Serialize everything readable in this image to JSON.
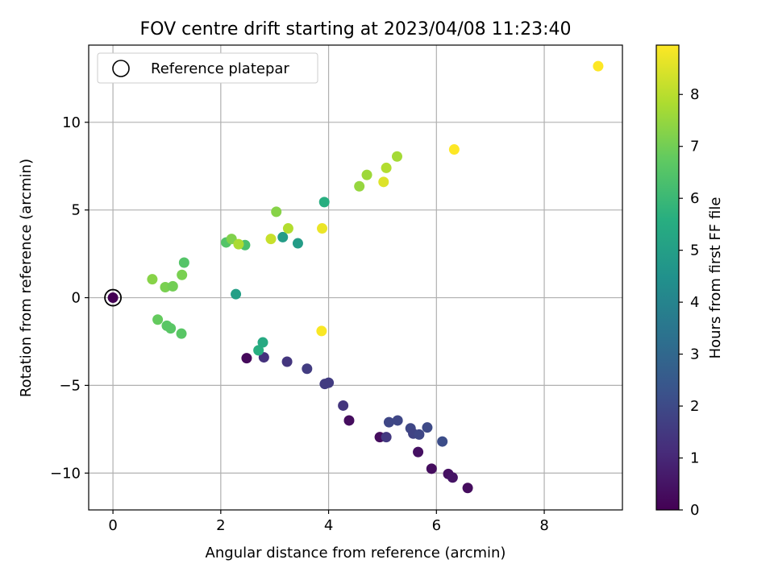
{
  "chart_data": {
    "type": "scatter",
    "title": "FOV centre drift starting at 2023/04/08 11:23:40",
    "xlabel": "Angular distance from reference (arcmin)",
    "ylabel": "Rotation from reference (arcmin)",
    "xlim": [
      -0.45,
      9.45
    ],
    "ylim": [
      -12.1,
      14.4
    ],
    "xticks": [
      0,
      2,
      4,
      6,
      8
    ],
    "xtick_labels": [
      "0",
      "2",
      "4",
      "6",
      "8"
    ],
    "yticks": [
      -10,
      -5,
      0,
      5,
      10
    ],
    "ytick_labels": [
      "−10",
      "−5",
      "0",
      "5",
      "10"
    ],
    "grid": true,
    "legend": {
      "placement": "top-left",
      "entries": [
        "Reference platepar"
      ]
    },
    "reference_point": {
      "x": 0,
      "y": 0
    },
    "colorbar": {
      "label": "Hours from first FF file",
      "colormap": "viridis",
      "range": [
        0,
        8.95
      ],
      "ticks": [
        0,
        1,
        2,
        3,
        4,
        5,
        6,
        7,
        8
      ],
      "tick_labels": [
        "0",
        "1",
        "2",
        "3",
        "4",
        "5",
        "6",
        "7",
        "8"
      ]
    },
    "series": [
      {
        "points": [
          {
            "x": 0.0,
            "y": 0.0,
            "t": 0.0
          },
          {
            "x": 2.48,
            "y": -3.45,
            "t": 0.2
          },
          {
            "x": 2.8,
            "y": -3.4,
            "t": 1.3
          },
          {
            "x": 3.23,
            "y": -3.65,
            "t": 1.4
          },
          {
            "x": 3.6,
            "y": -4.05,
            "t": 1.6
          },
          {
            "x": 3.93,
            "y": -4.92,
            "t": 1.6
          },
          {
            "x": 4.0,
            "y": -4.85,
            "t": 1.6
          },
          {
            "x": 4.27,
            "y": -6.15,
            "t": 1.4
          },
          {
            "x": 4.38,
            "y": -7.0,
            "t": 0.3
          },
          {
            "x": 4.95,
            "y": -7.95,
            "t": 0.3
          },
          {
            "x": 5.07,
            "y": -7.95,
            "t": 1.5
          },
          {
            "x": 5.12,
            "y": -7.1,
            "t": 1.9
          },
          {
            "x": 5.28,
            "y": -7.0,
            "t": 1.9
          },
          {
            "x": 5.52,
            "y": -7.45,
            "t": 1.9
          },
          {
            "x": 5.57,
            "y": -7.75,
            "t": 1.8
          },
          {
            "x": 5.68,
            "y": -7.8,
            "t": 1.9
          },
          {
            "x": 5.66,
            "y": -8.8,
            "t": 0.4
          },
          {
            "x": 5.83,
            "y": -7.4,
            "t": 2.0
          },
          {
            "x": 5.91,
            "y": -9.75,
            "t": 0.3
          },
          {
            "x": 6.11,
            "y": -8.2,
            "t": 2.1
          },
          {
            "x": 6.22,
            "y": -10.05,
            "t": 0.4
          },
          {
            "x": 6.3,
            "y": -10.25,
            "t": 0.5
          },
          {
            "x": 6.58,
            "y": -10.85,
            "t": 0.3
          },
          {
            "x": 2.28,
            "y": 0.2,
            "t": 5.0
          },
          {
            "x": 2.7,
            "y": -3.0,
            "t": 5.6
          },
          {
            "x": 2.78,
            "y": -2.55,
            "t": 5.4
          },
          {
            "x": 3.15,
            "y": 3.45,
            "t": 4.9
          },
          {
            "x": 3.43,
            "y": 3.1,
            "t": 4.9
          },
          {
            "x": 3.92,
            "y": 5.45,
            "t": 5.6
          },
          {
            "x": 2.1,
            "y": 3.15,
            "t": 6.5
          },
          {
            "x": 2.45,
            "y": 3.0,
            "t": 6.3
          },
          {
            "x": 1.32,
            "y": 2.0,
            "t": 6.5
          },
          {
            "x": 0.83,
            "y": -1.25,
            "t": 6.8
          },
          {
            "x": 1.0,
            "y": -1.6,
            "t": 6.6
          },
          {
            "x": 1.07,
            "y": -1.75,
            "t": 6.6
          },
          {
            "x": 1.27,
            "y": -2.05,
            "t": 6.6
          },
          {
            "x": 0.73,
            "y": 1.05,
            "t": 7.3
          },
          {
            "x": 0.97,
            "y": 0.6,
            "t": 7.1
          },
          {
            "x": 1.11,
            "y": 0.65,
            "t": 7.0
          },
          {
            "x": 1.28,
            "y": 1.3,
            "t": 7.1
          },
          {
            "x": 2.2,
            "y": 3.35,
            "t": 7.2
          },
          {
            "x": 2.33,
            "y": 3.05,
            "t": 7.8
          },
          {
            "x": 2.93,
            "y": 3.35,
            "t": 8.2
          },
          {
            "x": 3.03,
            "y": 4.9,
            "t": 7.3
          },
          {
            "x": 3.25,
            "y": 3.95,
            "t": 7.9
          },
          {
            "x": 4.57,
            "y": 6.35,
            "t": 7.5
          },
          {
            "x": 4.71,
            "y": 7.0,
            "t": 7.6
          },
          {
            "x": 5.02,
            "y": 6.6,
            "t": 8.5
          },
          {
            "x": 5.07,
            "y": 7.4,
            "t": 7.9
          },
          {
            "x": 5.27,
            "y": 8.05,
            "t": 7.7
          },
          {
            "x": 3.88,
            "y": 3.95,
            "t": 8.7
          },
          {
            "x": 3.87,
            "y": -1.9,
            "t": 8.9
          },
          {
            "x": 6.33,
            "y": 8.45,
            "t": 8.95
          },
          {
            "x": 9.0,
            "y": 13.2,
            "t": 8.95
          }
        ]
      }
    ]
  }
}
